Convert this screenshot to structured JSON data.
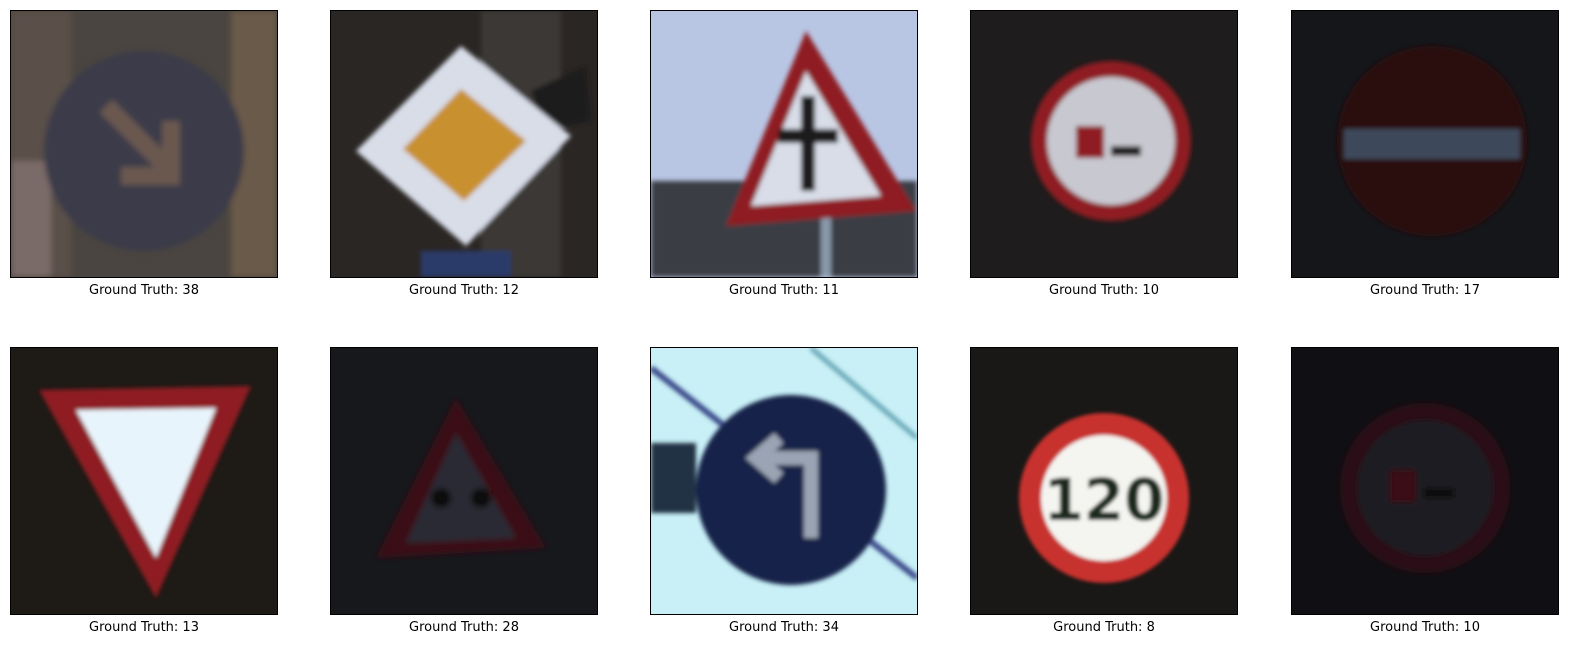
{
  "images": [
    {
      "caption": "Ground Truth: 38",
      "icon": "keep-right-sign-icon"
    },
    {
      "caption": "Ground Truth: 12",
      "icon": "priority-road-sign-icon"
    },
    {
      "caption": "Ground Truth: 11",
      "icon": "right-of-way-intersection-sign-icon"
    },
    {
      "caption": "Ground Truth: 10",
      "icon": "no-passing-trucks-sign-icon"
    },
    {
      "caption": "Ground Truth: 17",
      "icon": "no-entry-sign-icon"
    },
    {
      "caption": "Ground Truth: 13",
      "icon": "yield-sign-icon"
    },
    {
      "caption": "Ground Truth: 28",
      "icon": "children-crossing-sign-icon"
    },
    {
      "caption": "Ground Truth: 34",
      "icon": "turn-left-ahead-sign-icon"
    },
    {
      "caption": "Ground Truth: 8",
      "icon": "speed-limit-120-sign-icon"
    },
    {
      "caption": "Ground Truth: 10",
      "icon": "no-passing-trucks-sign-icon"
    }
  ],
  "colors": {
    "sign_red": "#8e1f22",
    "sign_blue": "#14234a",
    "sign_white": "#e8f4fb",
    "sign_yellow": "#c8902e"
  }
}
